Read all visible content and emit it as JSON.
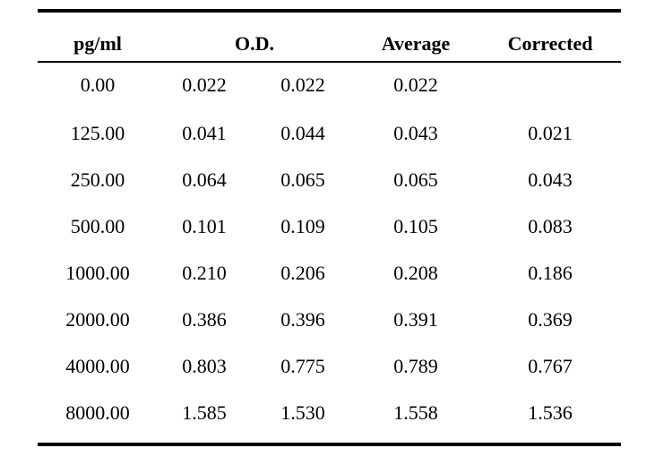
{
  "table": {
    "headers": {
      "conc": "pg/ml",
      "od": "O.D.",
      "average": "Average",
      "corrected": "Corrected"
    },
    "rows": [
      {
        "conc": "0.00",
        "od1": "0.022",
        "od2": "0.022",
        "average": "0.022",
        "corrected": ""
      },
      {
        "conc": "125.00",
        "od1": "0.041",
        "od2": "0.044",
        "average": "0.043",
        "corrected": "0.021"
      },
      {
        "conc": "250.00",
        "od1": "0.064",
        "od2": "0.065",
        "average": "0.065",
        "corrected": "0.043"
      },
      {
        "conc": "500.00",
        "od1": "0.101",
        "od2": "0.109",
        "average": "0.105",
        "corrected": "0.083"
      },
      {
        "conc": "1000.00",
        "od1": "0.210",
        "od2": "0.206",
        "average": "0.208",
        "corrected": "0.186"
      },
      {
        "conc": "2000.00",
        "od1": "0.386",
        "od2": "0.396",
        "average": "0.391",
        "corrected": "0.369"
      },
      {
        "conc": "4000.00",
        "od1": "0.803",
        "od2": "0.775",
        "average": "0.789",
        "corrected": "0.767"
      },
      {
        "conc": "8000.00",
        "od1": "1.585",
        "od2": "1.530",
        "average": "1.558",
        "corrected": "1.536"
      }
    ]
  }
}
